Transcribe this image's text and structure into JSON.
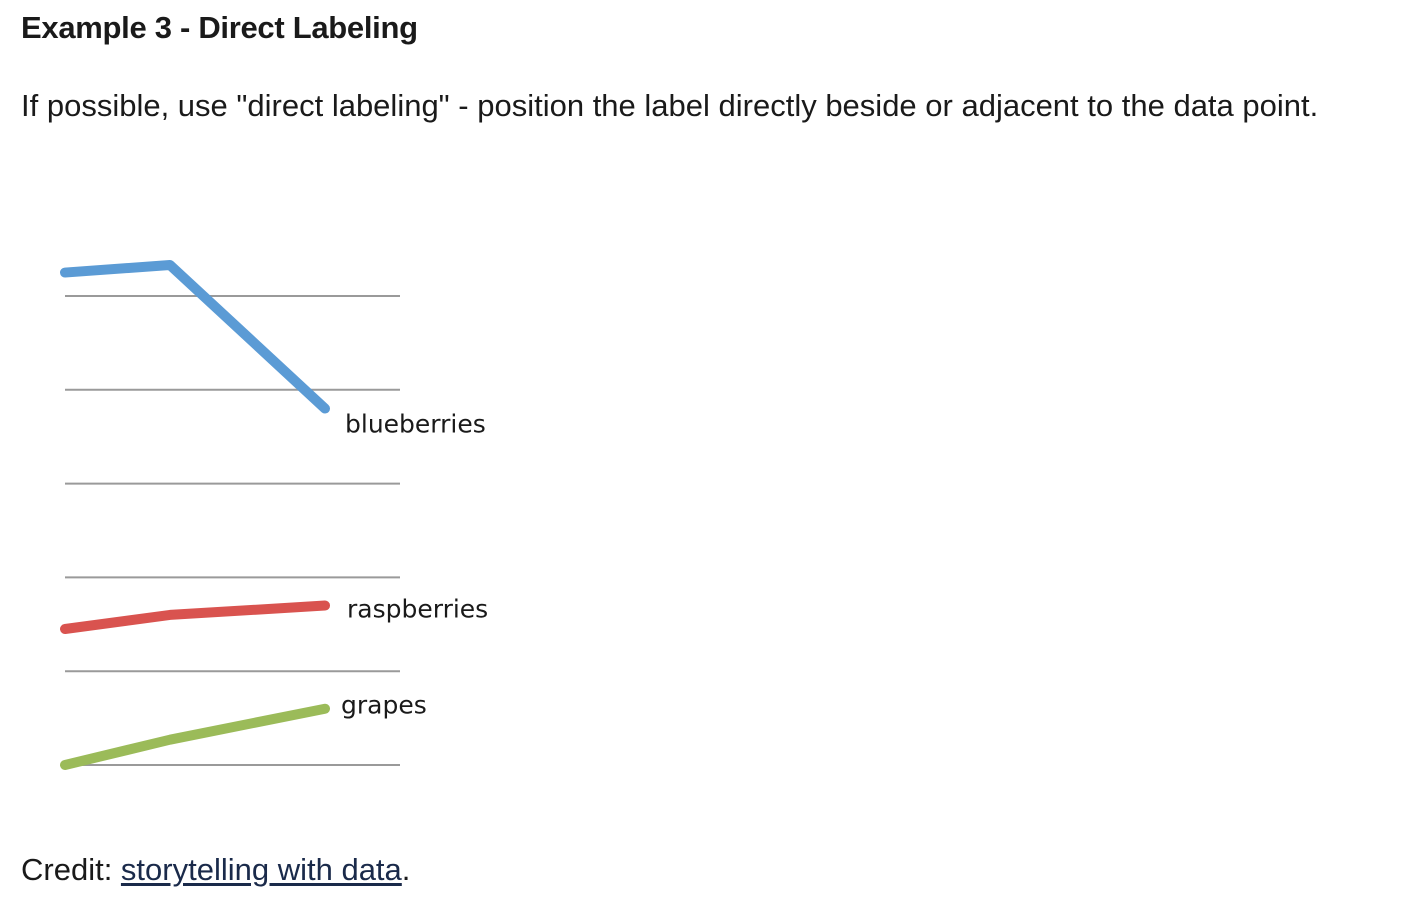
{
  "heading": "Example 3 - Direct Labeling",
  "intro": "If possible, use \"direct labeling\" - position the label directly beside or adjacent to the data point.",
  "credit": {
    "prefix": "Credit: ",
    "link_text": "storytelling with data",
    "suffix": "."
  },
  "chart_data": {
    "type": "line",
    "title": "",
    "xlabel": "",
    "ylabel": "",
    "x": [
      1,
      2,
      3
    ],
    "xlim": [
      1,
      3
    ],
    "ylim": [
      0,
      5
    ],
    "grid": true,
    "gridlines": [
      0,
      1,
      2,
      3,
      4,
      5
    ],
    "legend": "direct labels at line ends",
    "series": [
      {
        "name": "blueberries",
        "color": "#5b9bd5",
        "values": [
          5.25,
          5.33,
          3.8
        ]
      },
      {
        "name": "raspberries",
        "color": "#d9534f",
        "values": [
          1.45,
          1.6,
          1.7
        ]
      },
      {
        "name": "grapes",
        "color": "#9bbb59",
        "values": [
          0.0,
          0.27,
          0.6
        ]
      }
    ]
  }
}
